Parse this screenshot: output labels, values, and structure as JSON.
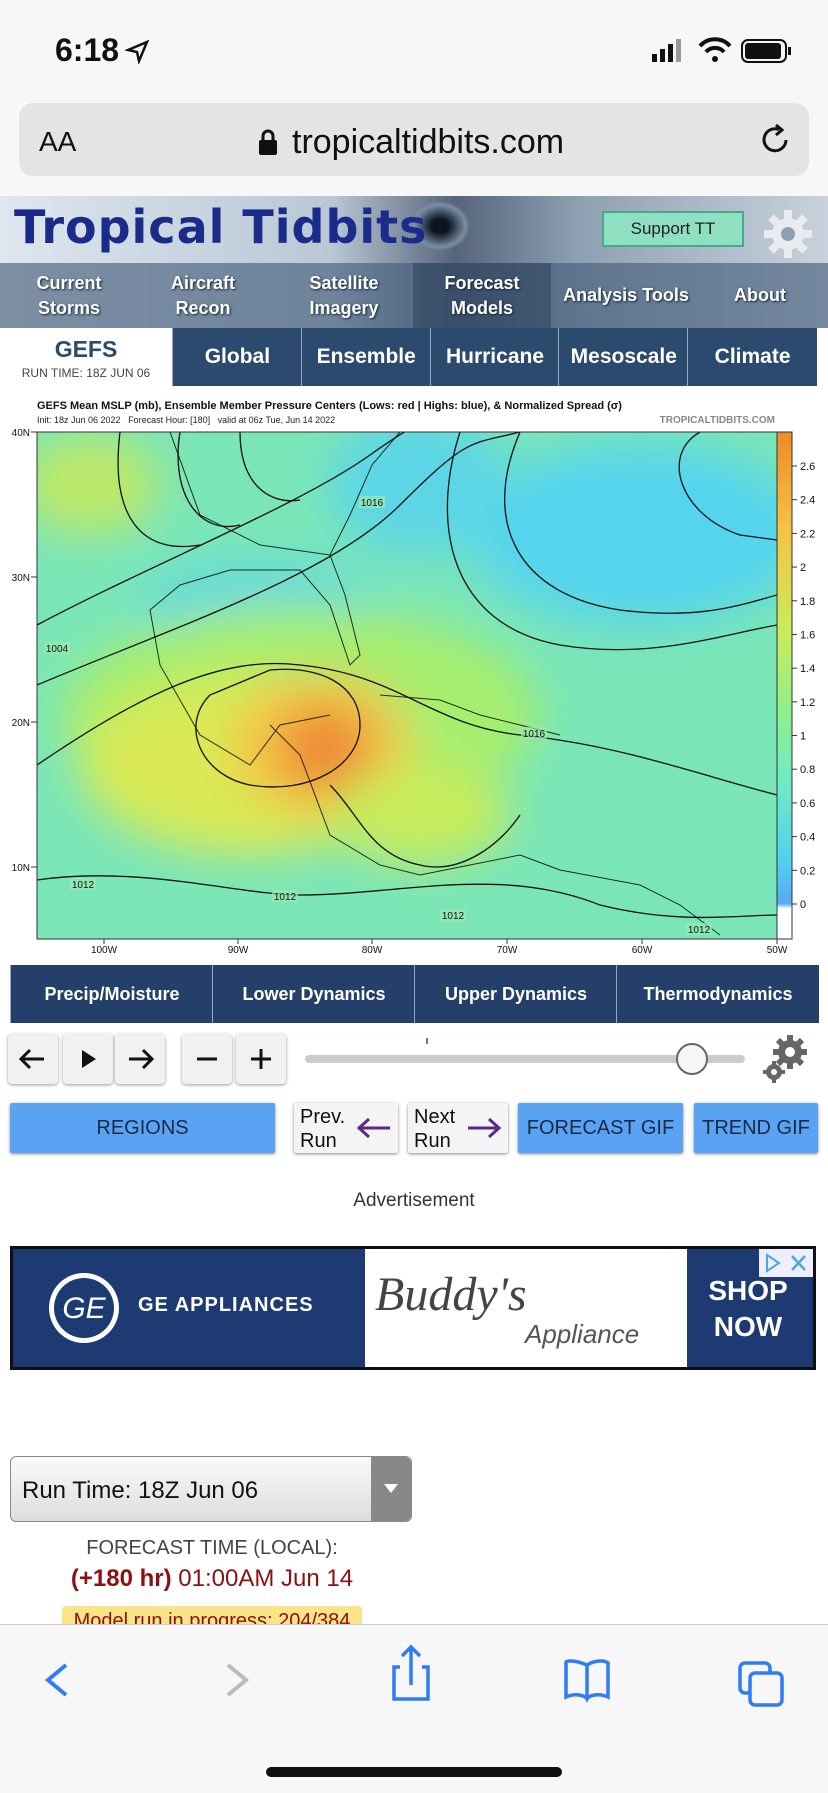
{
  "status_bar": {
    "time": "6:18"
  },
  "url_bar": {
    "text_size": "AA",
    "domain": "tropicaltidbits.com"
  },
  "site": {
    "logo": "Tropical Tidbits",
    "support": "Support TT",
    "nav": [
      [
        "Current",
        "Storms"
      ],
      [
        "Aircraft",
        "Recon"
      ],
      [
        "Satellite",
        "Imagery"
      ],
      [
        "Forecast",
        "Models"
      ],
      [
        "Analysis Tools"
      ],
      [
        "About"
      ]
    ],
    "model": "GEFS",
    "run_time": "RUN TIME: 18Z JUN 06",
    "model_tabs": [
      "Global",
      "Ensemble",
      "Hurricane",
      "Mesoscale",
      "Climate"
    ]
  },
  "map": {
    "title": "GEFS Mean MSLP (mb), Ensemble Member Pressure Centers (Lows: red | Highs: blue), & Normalized Spread (σ)",
    "subtitle": "Init: 18z Jun 06 2022   Forecast Hour: [180]   valid at 06z Tue, Jun 14 2022",
    "credit": "TROPICALTIDBITS.COM",
    "lat_labels": [
      "40N",
      "30N",
      "20N",
      "10N"
    ],
    "lon_labels": [
      "100W",
      "90W",
      "80W",
      "70W",
      "60W",
      "50W"
    ],
    "colorbar_labels": [
      "2.6",
      "2.4",
      "2.2",
      "2",
      "1.8",
      "1.6",
      "1.4",
      "1.2",
      "1",
      "0.8",
      "0.6",
      "0.4",
      "0.2",
      "0"
    ],
    "isobar_labels": [
      "1016",
      "1004",
      "1016",
      "1012",
      "1012",
      "1012",
      "1012"
    ]
  },
  "param_tabs": [
    "Precip/Moisture",
    "Lower Dynamics",
    "Upper Dynamics",
    "Thermodynamics"
  ],
  "buttons": {
    "regions": "REGIONS",
    "prev": [
      "Prev.",
      "Run"
    ],
    "next": [
      "Next",
      "Run"
    ],
    "forecast_gif": "FORECAST GIF",
    "trend_gif": "TREND GIF"
  },
  "ad": {
    "label": "Advertisement",
    "brand": "GE APPLIANCES",
    "partner": "Buddy's",
    "partner_sub": "Appliance",
    "cta": [
      "SHOP",
      "NOW"
    ]
  },
  "run_select": "Run Time: 18Z Jun 06",
  "forecast": {
    "label": "FORECAST TIME (LOCAL):",
    "hour": "(+180 hr)",
    "time": "01:00AM Jun 14",
    "status": "Model run in progress: 204/384"
  }
}
